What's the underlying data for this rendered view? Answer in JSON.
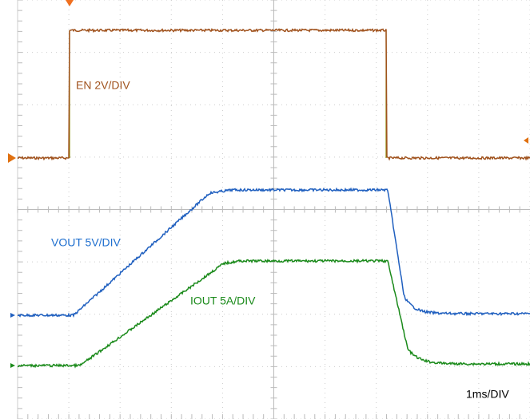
{
  "labels": {
    "en": "EN 2V/DIV",
    "vout": "VOUT 5V/DIV",
    "iout": "IOUT 5A/DIV",
    "timebase": "1ms/DIV"
  }
}
